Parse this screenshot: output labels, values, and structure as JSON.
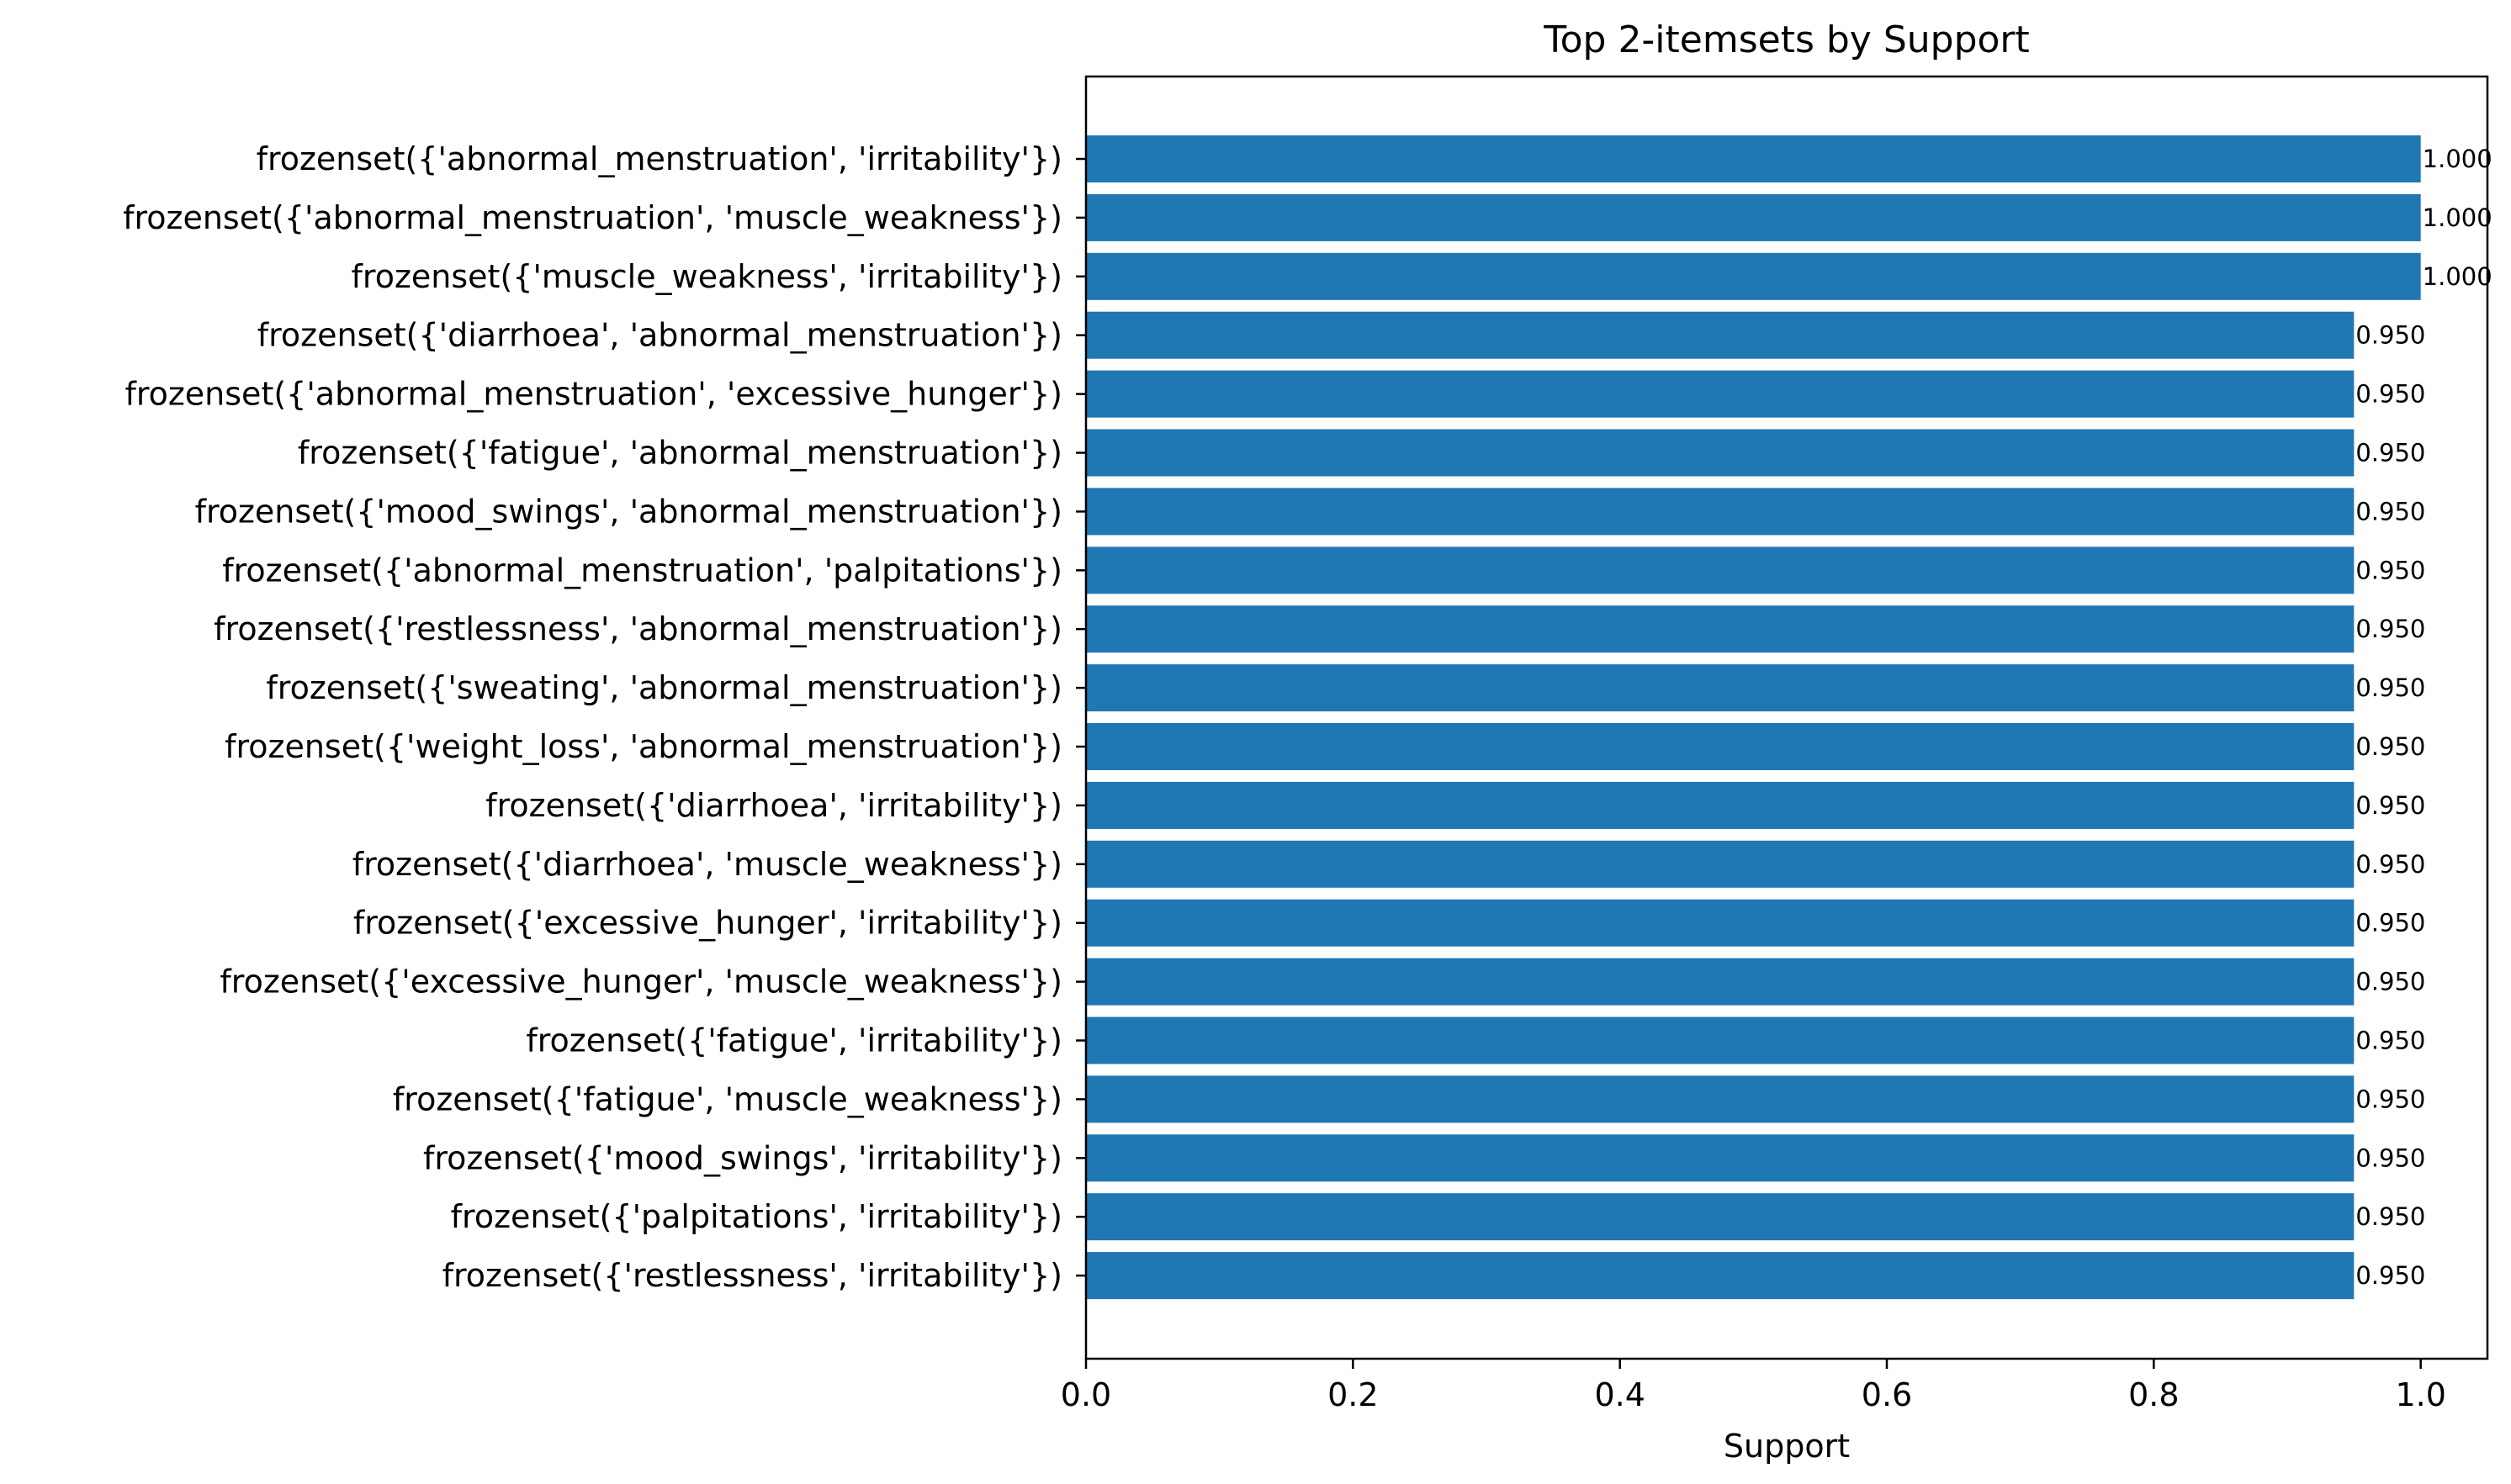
{
  "chart_data": {
    "type": "bar",
    "orientation": "horizontal",
    "title": "Top 2-itemsets by Support",
    "xlabel": "Support",
    "ylabel": "",
    "xlim": [
      0,
      1.05
    ],
    "xticks": [
      "0.0",
      "0.2",
      "0.4",
      "0.6",
      "0.8",
      "1.0"
    ],
    "grid": false,
    "legend": "none",
    "bar_color": "#1f77b4",
    "categories": [
      "frozenset({'abnormal_menstruation', 'irritability'})",
      "frozenset({'abnormal_menstruation', 'muscle_weakness'})",
      "frozenset({'muscle_weakness', 'irritability'})",
      "frozenset({'diarrhoea', 'abnormal_menstruation'})",
      "frozenset({'abnormal_menstruation', 'excessive_hunger'})",
      "frozenset({'fatigue', 'abnormal_menstruation'})",
      "frozenset({'mood_swings', 'abnormal_menstruation'})",
      "frozenset({'abnormal_menstruation', 'palpitations'})",
      "frozenset({'restlessness', 'abnormal_menstruation'})",
      "frozenset({'sweating', 'abnormal_menstruation'})",
      "frozenset({'weight_loss', 'abnormal_menstruation'})",
      "frozenset({'diarrhoea', 'irritability'})",
      "frozenset({'diarrhoea', 'muscle_weakness'})",
      "frozenset({'excessive_hunger', 'irritability'})",
      "frozenset({'excessive_hunger', 'muscle_weakness'})",
      "frozenset({'fatigue', 'irritability'})",
      "frozenset({'fatigue', 'muscle_weakness'})",
      "frozenset({'mood_swings', 'irritability'})",
      "frozenset({'palpitations', 'irritability'})",
      "frozenset({'restlessness', 'irritability'})"
    ],
    "values": [
      1.0,
      1.0,
      1.0,
      0.95,
      0.95,
      0.95,
      0.95,
      0.95,
      0.95,
      0.95,
      0.95,
      0.95,
      0.95,
      0.95,
      0.95,
      0.95,
      0.95,
      0.95,
      0.95,
      0.95
    ],
    "data_labels": [
      "1.000",
      "1.000",
      "1.000",
      "0.950",
      "0.950",
      "0.950",
      "0.950",
      "0.950",
      "0.950",
      "0.950",
      "0.950",
      "0.950",
      "0.950",
      "0.950",
      "0.950",
      "0.950",
      "0.950",
      "0.950",
      "0.950",
      "0.950"
    ]
  }
}
